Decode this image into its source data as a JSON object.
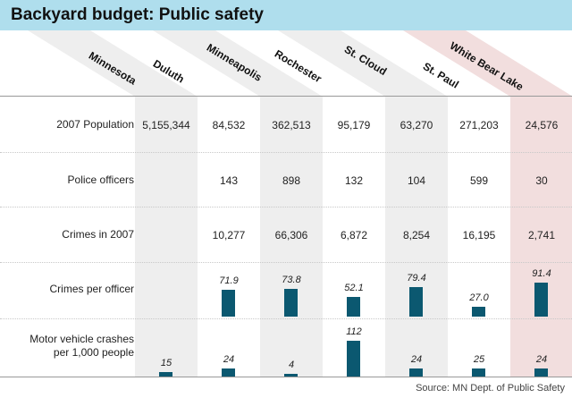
{
  "title": "Backyard budget: Public safety",
  "source": "Source: MN Dept. of Public Safety",
  "colors": {
    "title_bg": "#afdeed",
    "shade": "#eeeeee",
    "highlight": "#f2dede",
    "bar": "#0b5870"
  },
  "columns": [
    {
      "name": "Minnesota",
      "shade": "gray"
    },
    {
      "name": "Duluth",
      "shade": "none"
    },
    {
      "name": "Minneapolis",
      "shade": "gray"
    },
    {
      "name": "Rochester",
      "shade": "none"
    },
    {
      "name": "St. Cloud",
      "shade": "gray"
    },
    {
      "name": "St. Paul",
      "shade": "none"
    },
    {
      "name": "White Bear Lake",
      "shade": "highlight"
    }
  ],
  "rows": [
    {
      "label": "2007 Population",
      "values": [
        "5,155,344",
        "84,532",
        "362,513",
        "95,179",
        "63,270",
        "271,203",
        "24,576"
      ]
    },
    {
      "label": "Police officers",
      "values": [
        "",
        "143",
        "898",
        "132",
        "104",
        "599",
        "30"
      ]
    },
    {
      "label": "Crimes in 2007",
      "values": [
        "",
        "10,277",
        "66,306",
        "6,872",
        "8,254",
        "16,195",
        "2,741"
      ]
    }
  ],
  "chart_data": [
    {
      "type": "bar",
      "title": "Crimes per officer",
      "categories": [
        "Minnesota",
        "Duluth",
        "Minneapolis",
        "Rochester",
        "St. Cloud",
        "St. Paul",
        "White Bear Lake"
      ],
      "values": [
        null,
        71.9,
        73.8,
        52.1,
        79.4,
        27.0,
        91.4
      ],
      "labels": [
        "",
        "71.9",
        "73.8",
        "52.1",
        "79.4",
        "27.0",
        "91.4"
      ]
    },
    {
      "type": "bar",
      "title": "Motor vehicle crashes per 1,000 people",
      "title_lines": [
        "Motor vehicle crashes",
        "per 1,000 people"
      ],
      "categories": [
        "Minnesota",
        "Duluth",
        "Minneapolis",
        "Rochester",
        "St. Cloud",
        "St. Paul",
        "White Bear Lake"
      ],
      "values": [
        15,
        24,
        4,
        112,
        24,
        25,
        24
      ],
      "labels": [
        "15",
        "24",
        "4",
        "112",
        "24",
        "25",
        "24"
      ]
    }
  ]
}
